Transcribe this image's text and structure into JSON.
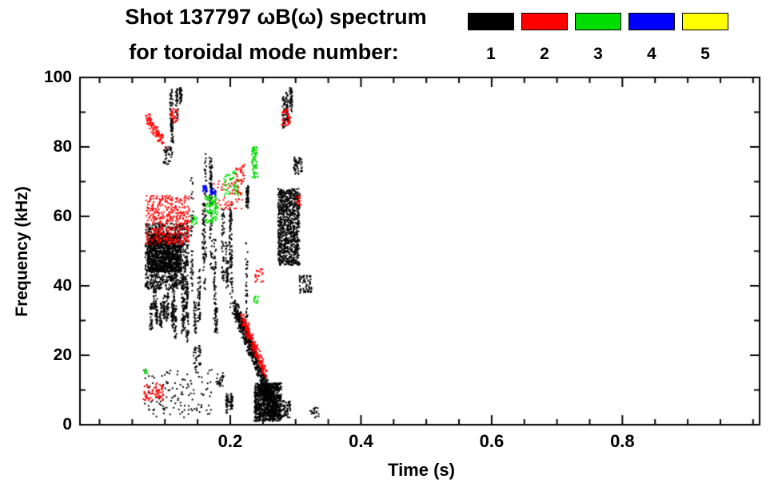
{
  "page": {
    "background": "#ffffff",
    "axis_color": "#000000"
  },
  "chart_data": {
    "type": "scatter",
    "title": "Shot 137797 ωB(ω) spectrum",
    "subtitle": "for toroidal mode number:",
    "xlabel": "Time (s)",
    "ylabel": "Frequency (kHz)",
    "xlim": [
      -0.03,
      1.01
    ],
    "ylim": [
      0,
      100
    ],
    "xticks": [
      {
        "v": 0.2,
        "label": "0.2"
      },
      {
        "v": 0.4,
        "label": "0.4"
      },
      {
        "v": 0.6,
        "label": "0.6"
      },
      {
        "v": 0.8,
        "label": "0.8"
      }
    ],
    "yticks": [
      {
        "v": 0,
        "label": "0"
      },
      {
        "v": 20,
        "label": "20"
      },
      {
        "v": 40,
        "label": "40"
      },
      {
        "v": 60,
        "label": "60"
      },
      {
        "v": 80,
        "label": "80"
      },
      {
        "v": 100,
        "label": "100"
      }
    ],
    "x_minor_step": 0.05,
    "y_minor_step": 10,
    "grid": false,
    "legend_position": "top-right",
    "legend": [
      {
        "mode": 1,
        "label": "1",
        "color": "#000000"
      },
      {
        "mode": 2,
        "label": "2",
        "color": "#ff0000"
      },
      {
        "mode": 3,
        "label": "3",
        "color": "#00dd00"
      },
      {
        "mode": 4,
        "label": "4",
        "color": "#0000ff"
      },
      {
        "mode": 5,
        "label": "5",
        "color": "#ffff00"
      }
    ],
    "clusters": [
      {
        "mode": 1,
        "shape": "blob",
        "t": [
          0.07,
          0.136
        ],
        "f": [
          39,
          58
        ],
        "n": 900
      },
      {
        "mode": 1,
        "shape": "blob",
        "t": [
          0.073,
          0.125
        ],
        "f": [
          44,
          55
        ],
        "n": 900
      },
      {
        "mode": 1,
        "shape": "vlines",
        "t": [
          0.073,
          0.147
        ],
        "f": [
          23,
          40
        ],
        "lines": 14,
        "n": 450
      },
      {
        "mode": 1,
        "shape": "vlines",
        "t": [
          0.109,
          0.131
        ],
        "f": [
          81,
          97
        ],
        "lines": 4,
        "n": 140
      },
      {
        "mode": 1,
        "shape": "blob",
        "t": [
          0.098,
          0.112
        ],
        "f": [
          75,
          80
        ],
        "n": 40
      },
      {
        "mode": 1,
        "shape": "vlines",
        "t": [
          0.138,
          0.228
        ],
        "f": [
          25,
          80
        ],
        "lines": 14,
        "n": 650
      },
      {
        "mode": 1,
        "shape": "vlines",
        "t": [
          0.195,
          0.202
        ],
        "f": [
          2,
          9
        ],
        "lines": 2,
        "n": 70
      },
      {
        "mode": 1,
        "shape": "diag",
        "t": [
          0.206,
          0.27
        ],
        "f": [
          34,
          4
        ],
        "fw": 5,
        "n": 700
      },
      {
        "mode": 1,
        "shape": "blob",
        "t": [
          0.237,
          0.278
        ],
        "f": [
          1,
          12
        ],
        "n": 900
      },
      {
        "mode": 1,
        "shape": "blob",
        "t": [
          0.278,
          0.292
        ],
        "f": [
          2,
          7
        ],
        "n": 60
      },
      {
        "mode": 1,
        "shape": "blob",
        "t": [
          0.273,
          0.306
        ],
        "f": [
          46,
          68
        ],
        "n": 900
      },
      {
        "mode": 1,
        "shape": "vlines",
        "t": [
          0.278,
          0.296
        ],
        "f": [
          85,
          97
        ],
        "lines": 3,
        "n": 110
      },
      {
        "mode": 1,
        "shape": "blob",
        "t": [
          0.297,
          0.31
        ],
        "f": [
          72,
          77
        ],
        "n": 50
      },
      {
        "mode": 1,
        "shape": "blob",
        "t": [
          0.306,
          0.325
        ],
        "f": [
          38,
          43
        ],
        "n": 60
      },
      {
        "mode": 1,
        "shape": "blob",
        "t": [
          0.067,
          0.172
        ],
        "f": [
          2,
          16
        ],
        "n": 130
      },
      {
        "mode": 1,
        "shape": "blob",
        "t": [
          0.143,
          0.155
        ],
        "f": [
          16,
          23
        ],
        "n": 35
      },
      {
        "mode": 1,
        "shape": "blob",
        "t": [
          0.178,
          0.19
        ],
        "f": [
          11,
          15
        ],
        "n": 25
      },
      {
        "mode": 1,
        "shape": "blob",
        "t": [
          0.322,
          0.336
        ],
        "f": [
          2,
          5
        ],
        "n": 20
      },
      {
        "mode": 2,
        "shape": "diag",
        "t": [
          0.071,
          0.098
        ],
        "f": [
          89,
          81
        ],
        "fw": 3,
        "n": 90
      },
      {
        "mode": 2,
        "shape": "blob",
        "t": [
          0.109,
          0.12
        ],
        "f": [
          87,
          91
        ],
        "n": 30
      },
      {
        "mode": 2,
        "shape": "blob",
        "t": [
          0.071,
          0.138
        ],
        "f": [
          52,
          66
        ],
        "n": 420
      },
      {
        "mode": 2,
        "shape": "blob",
        "t": [
          0.175,
          0.22
        ],
        "f": [
          62,
          71
        ],
        "n": 80
      },
      {
        "mode": 2,
        "shape": "blob",
        "t": [
          0.208,
          0.222
        ],
        "f": [
          70,
          75
        ],
        "n": 30
      },
      {
        "mode": 2,
        "shape": "diag",
        "t": [
          0.218,
          0.255
        ],
        "f": [
          31,
          14
        ],
        "fw": 3,
        "n": 220
      },
      {
        "mode": 2,
        "shape": "blob",
        "t": [
          0.238,
          0.25
        ],
        "f": [
          41,
          45
        ],
        "n": 20
      },
      {
        "mode": 2,
        "shape": "blob",
        "t": [
          0.279,
          0.293
        ],
        "f": [
          86,
          91
        ],
        "n": 40
      },
      {
        "mode": 2,
        "shape": "blob",
        "t": [
          0.3,
          0.308
        ],
        "f": [
          63,
          66
        ],
        "n": 15
      },
      {
        "mode": 2,
        "shape": "blob",
        "t": [
          0.067,
          0.098
        ],
        "f": [
          7,
          12
        ],
        "n": 70
      },
      {
        "mode": 3,
        "shape": "blob",
        "t": [
          0.162,
          0.181
        ],
        "f": [
          58,
          66
        ],
        "n": 90
      },
      {
        "mode": 3,
        "shape": "blob",
        "t": [
          0.19,
          0.214
        ],
        "f": [
          66,
          73
        ],
        "n": 45
      },
      {
        "mode": 3,
        "shape": "blob",
        "t": [
          0.233,
          0.242
        ],
        "f": [
          71,
          80
        ],
        "n": 70
      },
      {
        "mode": 3,
        "shape": "blob",
        "t": [
          0.14,
          0.15
        ],
        "f": [
          57,
          60
        ],
        "n": 15
      },
      {
        "mode": 3,
        "shape": "blob",
        "t": [
          0.236,
          0.243
        ],
        "f": [
          35,
          37
        ],
        "n": 12
      },
      {
        "mode": 3,
        "shape": "blob",
        "t": [
          0.068,
          0.074
        ],
        "f": [
          14,
          16
        ],
        "n": 8
      },
      {
        "mode": 4,
        "shape": "blob",
        "t": [
          0.158,
          0.165
        ],
        "f": [
          67,
          69
        ],
        "n": 22
      },
      {
        "mode": 4,
        "shape": "blob",
        "t": [
          0.17,
          0.178
        ],
        "f": [
          66,
          68
        ],
        "n": 22
      }
    ]
  }
}
